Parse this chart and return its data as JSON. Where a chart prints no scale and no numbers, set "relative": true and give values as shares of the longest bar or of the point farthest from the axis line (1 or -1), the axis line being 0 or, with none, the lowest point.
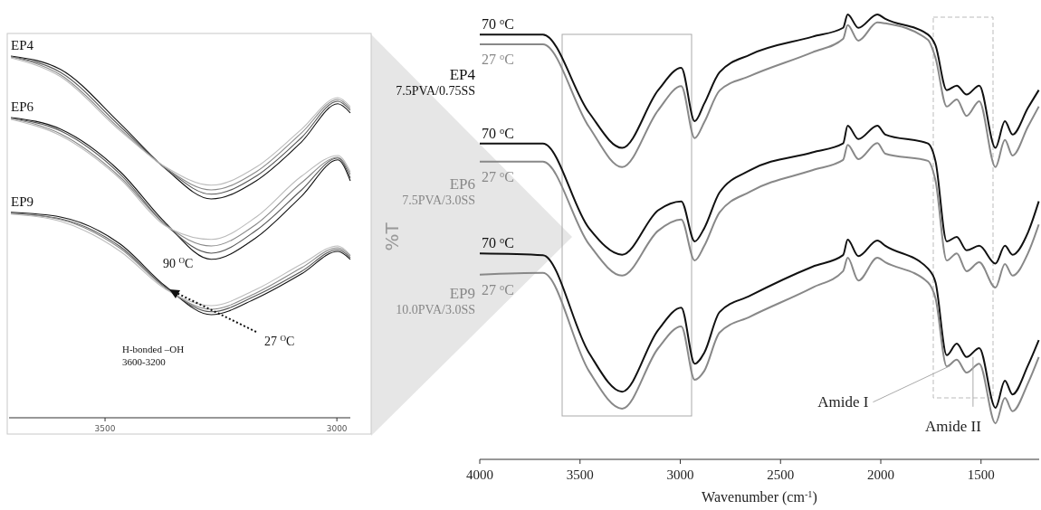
{
  "chart_data": [
    {
      "type": "line",
      "relative": true,
      "x": [
        3703,
        3596,
        3467,
        3369,
        3271,
        3174,
        3076,
        2998,
        2971
      ],
      "xlim": [
        3707,
        2971
      ],
      "xticks": [
        3500,
        3000
      ],
      "annotations": [
        "EP4",
        "EP6",
        "EP9",
        "90 $^{O}$C",
        "27 $^{O}$C",
        "H-bonded –OH",
        "3600-3200"
      ],
      "series": [
        {
          "color": "#111111",
          "values": [
            1.0,
            0.963,
            0.813,
            0.688,
            0.605,
            0.655,
            0.763,
            0.868,
            0.843
          ]
        },
        {
          "color": "#555555",
          "values": [
            0.998,
            0.955,
            0.805,
            0.69,
            0.618,
            0.668,
            0.775,
            0.875,
            0.85
          ]
        },
        {
          "color": "#888888",
          "values": [
            0.998,
            0.948,
            0.798,
            0.69,
            0.63,
            0.68,
            0.788,
            0.88,
            0.855
          ]
        },
        {
          "color": "#bbbbbb",
          "values": [
            0.995,
            0.943,
            0.793,
            0.693,
            0.643,
            0.693,
            0.798,
            0.885,
            0.86
          ]
        },
        {
          "color": "#111111",
          "values": [
            0.83,
            0.798,
            0.68,
            0.538,
            0.438,
            0.498,
            0.613,
            0.713,
            0.655
          ]
        },
        {
          "color": "#555555",
          "values": [
            0.828,
            0.793,
            0.673,
            0.533,
            0.455,
            0.518,
            0.63,
            0.718,
            0.663
          ]
        },
        {
          "color": "#888888",
          "values": [
            0.828,
            0.785,
            0.665,
            0.533,
            0.475,
            0.535,
            0.65,
            0.72,
            0.673
          ]
        },
        {
          "color": "#bbbbbb",
          "values": [
            0.825,
            0.78,
            0.66,
            0.53,
            0.493,
            0.555,
            0.668,
            0.725,
            0.68
          ]
        },
        {
          "color": "#111111",
          "values": [
            0.568,
            0.555,
            0.48,
            0.363,
            0.285,
            0.33,
            0.398,
            0.46,
            0.438
          ]
        },
        {
          "color": "#555555",
          "values": [
            0.565,
            0.55,
            0.473,
            0.36,
            0.293,
            0.338,
            0.405,
            0.465,
            0.443
          ]
        },
        {
          "color": "#888888",
          "values": [
            0.565,
            0.548,
            0.468,
            0.358,
            0.3,
            0.345,
            0.415,
            0.47,
            0.448
          ]
        },
        {
          "color": "#bbbbbb",
          "values": [
            0.563,
            0.543,
            0.46,
            0.355,
            0.31,
            0.355,
            0.425,
            0.475,
            0.45
          ]
        }
      ]
    },
    {
      "type": "line",
      "relative": true,
      "xlabel": "Wavenumber (cm$^{-1}$)",
      "ylabel": "%T",
      "xlim": [
        4000,
        1210
      ],
      "xticks": [
        4000,
        3500,
        3000,
        2500,
        2000,
        1500
      ],
      "x": [
        4000,
        3685,
        3456,
        3290,
        3110,
        2995,
        2928,
        2880,
        2804,
        2651,
        2341,
        2188,
        2165,
        2112,
        2017,
        1977,
        1765,
        1727,
        1671,
        1621,
        1572,
        1509,
        1428,
        1381,
        1343,
        1266,
        1212
      ],
      "annotations": [
        "EP4",
        "7.5PVA/0.75SS",
        "EP6",
        "7.5PVA/3.0SS",
        "EP9",
        "10.0PVA/3.0SS",
        {
          "text": "Amide I",
          "x": 1655,
          "y": 0.21
        },
        {
          "text": "Amide II",
          "x": 1540,
          "y": 0.23
        }
      ],
      "series": [
        {
          "name": "70 $^{o}$C",
          "color": "#111111",
          "values": [
            0.955,
            0.955,
            0.78,
            0.7,
            0.83,
            0.88,
            0.76,
            0.8,
            0.87,
            0.91,
            0.95,
            0.97,
            1.0,
            0.97,
            1.0,
            0.99,
            0.955,
            0.93,
            0.83,
            0.84,
            0.82,
            0.84,
            0.7,
            0.76,
            0.73,
            0.79,
            0.83
          ]
        },
        {
          "name": "27 $^{o}$C",
          "color": "#888888",
          "values": [
            0.933,
            0.933,
            0.748,
            0.657,
            0.785,
            0.839,
            0.722,
            0.758,
            0.829,
            0.862,
            0.915,
            0.945,
            0.976,
            0.941,
            0.982,
            0.98,
            0.943,
            0.902,
            0.793,
            0.809,
            0.772,
            0.805,
            0.657,
            0.718,
            0.683,
            0.748,
            0.793
          ]
        },
        {
          "name": "70 $^{o}$C",
          "color": "#111111",
          "values": [
            0.71,
            0.71,
            0.52,
            0.46,
            0.56,
            0.58,
            0.49,
            0.52,
            0.6,
            0.65,
            0.69,
            0.71,
            0.75,
            0.72,
            0.75,
            0.73,
            0.71,
            0.67,
            0.49,
            0.5,
            0.47,
            0.48,
            0.44,
            0.48,
            0.46,
            0.51,
            0.58
          ]
        },
        {
          "name": "27 $^{o}$C",
          "color": "#888888",
          "values": [
            0.669,
            0.669,
            0.484,
            0.413,
            0.514,
            0.539,
            0.447,
            0.48,
            0.555,
            0.602,
            0.65,
            0.673,
            0.707,
            0.675,
            0.711,
            0.687,
            0.671,
            0.626,
            0.447,
            0.463,
            0.423,
            0.443,
            0.386,
            0.439,
            0.413,
            0.463,
            0.528
          ]
        },
        {
          "name": "70 $^{o}$C",
          "color": "#111111",
          "values": [
            0.463,
            0.459,
            0.24,
            0.152,
            0.291,
            0.341,
            0.215,
            0.24,
            0.331,
            0.368,
            0.433,
            0.459,
            0.494,
            0.457,
            0.492,
            0.48,
            0.429,
            0.398,
            0.234,
            0.26,
            0.23,
            0.25,
            0.116,
            0.177,
            0.146,
            0.211,
            0.268
          ]
        },
        {
          "name": "27 $^{o}$C",
          "color": "#888888",
          "values": [
            0.415,
            0.419,
            0.199,
            0.114,
            0.25,
            0.299,
            0.179,
            0.199,
            0.285,
            0.321,
            0.386,
            0.423,
            0.453,
            0.402,
            0.453,
            0.443,
            0.398,
            0.362,
            0.209,
            0.224,
            0.195,
            0.215,
            0.081,
            0.138,
            0.108,
            0.171,
            0.23
          ]
        }
      ]
    }
  ]
}
